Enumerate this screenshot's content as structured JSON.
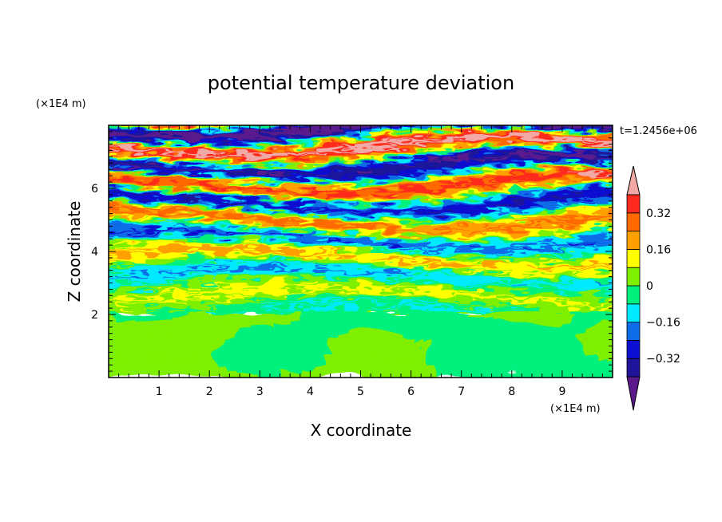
{
  "chart_data": {
    "type": "heatmap",
    "title": "potential temperature deviation",
    "xlabel": "X coordinate",
    "ylabel": "Z coordinate",
    "x_unit": "(×1E4 m)",
    "y_unit": "(×1E4 m)",
    "time_label": "t=1.2456e+06",
    "xlim": [
      0,
      10
    ],
    "ylim": [
      0,
      8
    ],
    "x_ticks": [
      "1",
      "2",
      "3",
      "4",
      "5",
      "6",
      "7",
      "8",
      "9"
    ],
    "y_ticks": [
      "2",
      "4",
      "6"
    ],
    "colorbar": {
      "levels": [
        -0.4,
        -0.32,
        -0.24,
        -0.16,
        -0.08,
        0,
        0.08,
        0.16,
        0.24,
        0.32,
        0.4
      ],
      "colors": [
        "#5a1a8c",
        "#1f139a",
        "#0c0ed2",
        "#0f6ce8",
        "#00eaff",
        "#00f07e",
        "#7fef00",
        "#ffff00",
        "#ffa000",
        "#ff6a00",
        "#ff2a1e",
        "#f2a9a6"
      ],
      "tick_labels": [
        "0.32",
        "0.16",
        "0",
        "−0.16",
        "−0.32"
      ],
      "tick_values": [
        0.32,
        0.16,
        0,
        -0.16,
        -0.32
      ],
      "extend": "both"
    }
  }
}
